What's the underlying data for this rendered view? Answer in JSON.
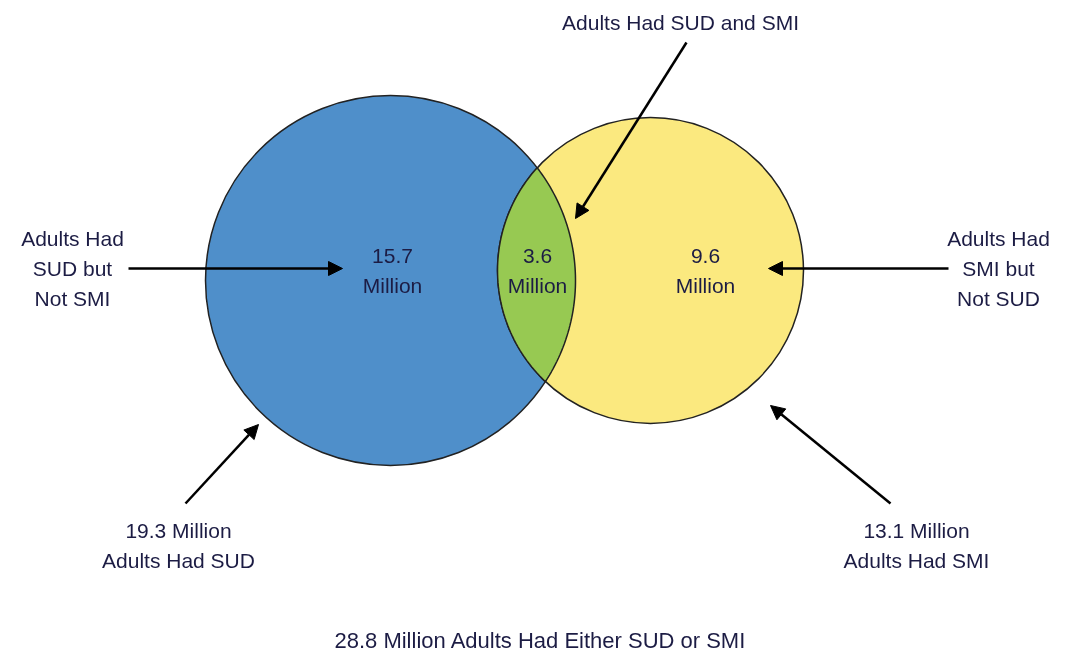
{
  "chart_data": {
    "type": "other",
    "categories": [
      "Adults Had SUD but Not SMI",
      "Adults Had SUD and SMI",
      "Adults Had SMI but Not SUD"
    ],
    "values": [
      15.7,
      3.6,
      9.6
    ],
    "value_labels": [
      "15.7 Million",
      "3.6 Million",
      "9.6 Million"
    ],
    "colors": [
      "#4f8fca",
      "#97c952",
      "#fbe97f"
    ],
    "annotations": [
      "19.3 Million Adults Had SUD",
      "13.1 Million Adults Had SMI",
      "28.8 Million Adults Had Either SUD or SMI"
    ]
  }
}
